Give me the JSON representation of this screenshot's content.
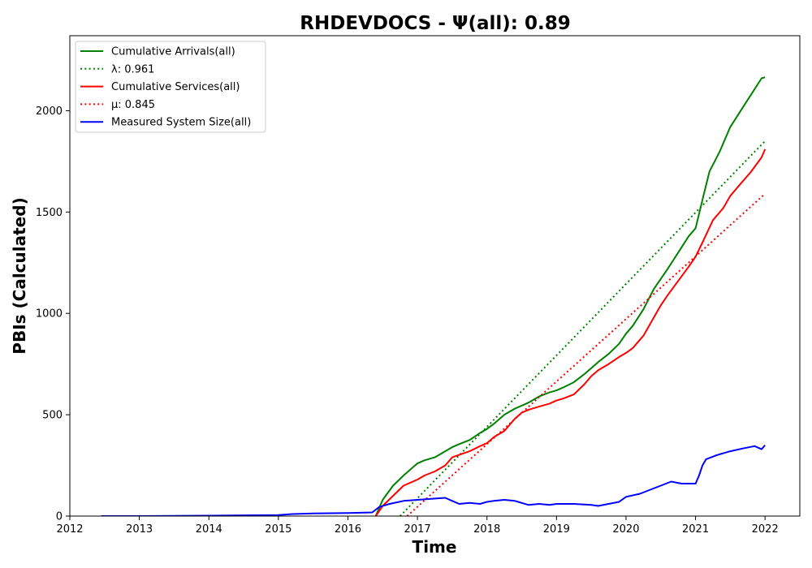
{
  "chart_data": {
    "type": "line",
    "title": "RHDEVDOCS -  Ψ(all): 0.89",
    "xlabel": "Time",
    "ylabel": "PBIs (Calculated)",
    "xlim": [
      2012.0,
      2022.5
    ],
    "ylim": [
      0,
      2370
    ],
    "x_ticks": [
      2012,
      2013,
      2014,
      2015,
      2016,
      2017,
      2018,
      2019,
      2020,
      2021,
      2022
    ],
    "x_tick_labels": [
      "2012",
      "2013",
      "2014",
      "2015",
      "2016",
      "2017",
      "2018",
      "2019",
      "2020",
      "2021",
      "2022"
    ],
    "y_ticks": [
      0,
      500,
      1000,
      1500,
      2000
    ],
    "y_tick_labels": [
      "0",
      "500",
      "1000",
      "1500",
      "2000"
    ],
    "grid": false,
    "legend_position": "top-left",
    "series": [
      {
        "name": "Cumulative Arrivals(all)",
        "style": "solid",
        "color": "#008000",
        "x": [
          2016.4,
          2016.5,
          2016.65,
          2016.8,
          2016.9,
          2017.0,
          2017.1,
          2017.25,
          2017.4,
          2017.5,
          2017.6,
          2017.75,
          2017.9,
          2018.0,
          2018.1,
          2018.25,
          2018.4,
          2018.5,
          2018.6,
          2018.75,
          2018.9,
          2019.0,
          2019.1,
          2019.25,
          2019.4,
          2019.5,
          2019.6,
          2019.75,
          2019.9,
          2020.0,
          2020.1,
          2020.25,
          2020.4,
          2020.5,
          2020.6,
          2020.75,
          2020.9,
          2021.0,
          2021.1,
          2021.2,
          2021.35,
          2021.5,
          2021.65,
          2021.8,
          2021.95,
          2022.0
        ],
        "values": [
          0,
          80,
          150,
          200,
          230,
          260,
          275,
          290,
          320,
          340,
          355,
          375,
          410,
          430,
          455,
          500,
          530,
          545,
          560,
          590,
          610,
          620,
          635,
          660,
          700,
          730,
          760,
          800,
          850,
          900,
          940,
          1020,
          1120,
          1170,
          1220,
          1300,
          1380,
          1420,
          1560,
          1700,
          1800,
          1920,
          2000,
          2080,
          2160,
          2165
        ]
      },
      {
        "name": "λ: 0.961",
        "style": "dotted",
        "color": "#008000",
        "x": [
          2016.75,
          2022.0
        ],
        "values": [
          0,
          1850
        ]
      },
      {
        "name": "Cumulative Services(all)",
        "style": "solid",
        "color": "#ff0000",
        "x": [
          2016.4,
          2016.5,
          2016.65,
          2016.8,
          2017.0,
          2017.1,
          2017.25,
          2017.4,
          2017.5,
          2017.75,
          2017.9,
          2018.0,
          2018.1,
          2018.25,
          2018.4,
          2018.5,
          2018.6,
          2018.75,
          2018.9,
          2019.0,
          2019.1,
          2019.25,
          2019.4,
          2019.5,
          2019.6,
          2019.75,
          2019.9,
          2020.0,
          2020.1,
          2020.25,
          2020.4,
          2020.5,
          2020.6,
          2020.75,
          2020.9,
          2021.0,
          2021.1,
          2021.25,
          2021.4,
          2021.5,
          2021.65,
          2021.8,
          2021.95,
          2022.0
        ],
        "values": [
          0,
          50,
          100,
          150,
          180,
          200,
          220,
          250,
          290,
          320,
          345,
          360,
          390,
          420,
          480,
          510,
          525,
          540,
          555,
          570,
          580,
          600,
          650,
          690,
          720,
          750,
          785,
          805,
          830,
          890,
          980,
          1040,
          1090,
          1160,
          1230,
          1280,
          1350,
          1460,
          1520,
          1580,
          1640,
          1700,
          1770,
          1810
        ]
      },
      {
        "name": "μ: 0.845",
        "style": "dotted",
        "color": "#ff0000",
        "x": [
          2016.85,
          2022.0
        ],
        "values": [
          0,
          1590
        ]
      },
      {
        "name": "Measured System Size(all)",
        "style": "solid",
        "color": "#0000ff",
        "x": [
          2012.45,
          2013.0,
          2014.0,
          2015.0,
          2015.2,
          2015.5,
          2016.0,
          2016.35,
          2016.45,
          2016.6,
          2016.8,
          2017.0,
          2017.2,
          2017.4,
          2017.5,
          2017.6,
          2017.75,
          2017.9,
          2018.0,
          2018.1,
          2018.25,
          2018.4,
          2018.5,
          2018.6,
          2018.75,
          2018.9,
          2019.0,
          2019.25,
          2019.5,
          2019.6,
          2019.75,
          2019.9,
          2020.0,
          2020.2,
          2020.35,
          2020.5,
          2020.65,
          2020.8,
          2021.0,
          2021.05,
          2021.1,
          2021.15,
          2021.3,
          2021.5,
          2021.7,
          2021.85,
          2021.95,
          2022.0
        ],
        "values": [
          0,
          0,
          2,
          5,
          10,
          13,
          15,
          18,
          45,
          60,
          75,
          80,
          85,
          90,
          75,
          60,
          65,
          60,
          70,
          75,
          80,
          75,
          65,
          55,
          60,
          55,
          60,
          60,
          55,
          50,
          60,
          70,
          95,
          110,
          130,
          150,
          170,
          160,
          160,
          200,
          250,
          280,
          300,
          320,
          335,
          345,
          330,
          350
        ]
      }
    ]
  }
}
